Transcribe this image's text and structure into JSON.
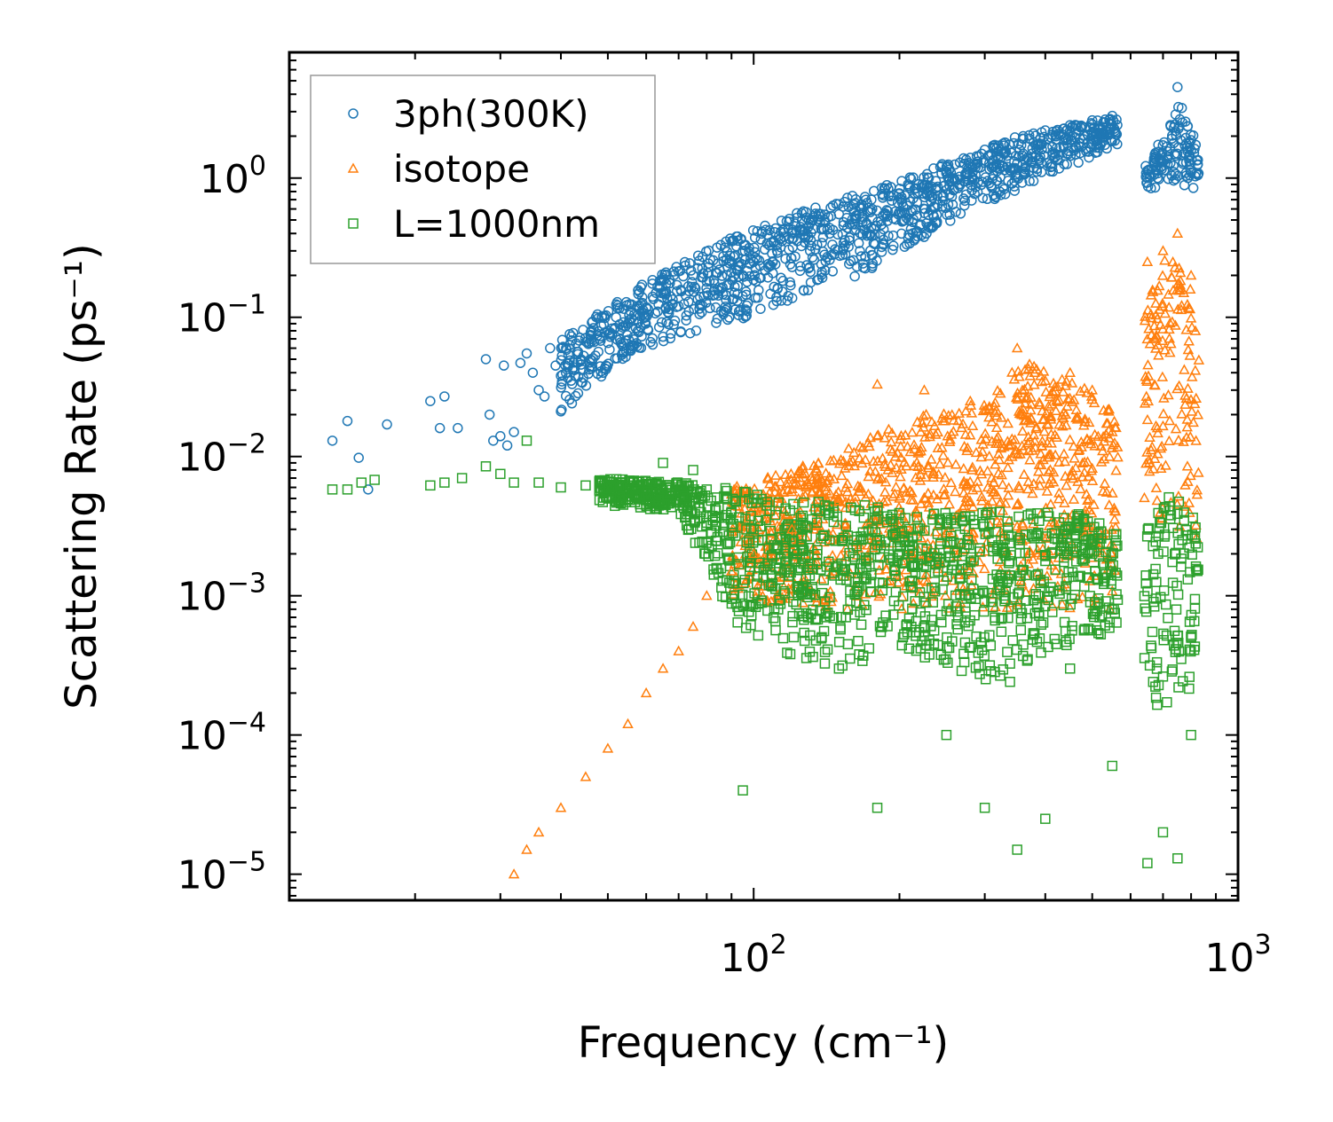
{
  "chart_data": {
    "type": "scatter",
    "title": "",
    "xlabel": "Frequency (cm⁻¹)",
    "ylabel": "Scattering Rate (ps⁻¹)",
    "xscale": "log",
    "yscale": "log",
    "xlim": [
      11,
      1000
    ],
    "ylim": [
      6.5e-06,
      8
    ],
    "x_ticks": [
      {
        "value": 100,
        "base": "10",
        "exp": "2"
      },
      {
        "value": 1000,
        "base": "10",
        "exp": "3"
      }
    ],
    "y_ticks": [
      {
        "value": 1e-05,
        "base": "10",
        "exp": "−5"
      },
      {
        "value": 0.0001,
        "base": "10",
        "exp": "−4"
      },
      {
        "value": 0.001,
        "base": "10",
        "exp": "−3"
      },
      {
        "value": 0.01,
        "base": "10",
        "exp": "−2"
      },
      {
        "value": 0.1,
        "base": "10",
        "exp": "−1"
      },
      {
        "value": 1,
        "base": "10",
        "exp": "0"
      }
    ],
    "legend_position": "top-left",
    "series": [
      {
        "name": "3ph(300K)",
        "marker": "circle",
        "color": "#1f77b4",
        "points": [
          [
            13.5,
            0.013
          ],
          [
            14.5,
            0.018
          ],
          [
            15.3,
            0.0098
          ],
          [
            16,
            0.0058
          ],
          [
            17.5,
            0.017
          ],
          [
            21.5,
            0.025
          ],
          [
            22.5,
            0.016
          ],
          [
            23,
            0.027
          ],
          [
            24.5,
            0.016
          ],
          [
            28,
            0.05
          ],
          [
            28.5,
            0.02
          ],
          [
            29,
            0.013
          ],
          [
            30,
            0.014
          ],
          [
            30.5,
            0.045
          ],
          [
            31,
            0.012
          ],
          [
            32,
            0.015
          ],
          [
            33,
            0.047
          ],
          [
            34,
            0.055
          ],
          [
            35,
            0.04
          ],
          [
            36,
            0.03
          ],
          [
            37,
            0.027
          ],
          [
            38,
            0.06
          ],
          [
            39,
            0.045
          ],
          [
            40,
            0.038
          ],
          [
            41,
            0.06
          ],
          [
            42,
            0.035
          ],
          [
            43,
            0.065
          ],
          [
            44,
            0.05
          ],
          [
            46,
            0.05
          ],
          [
            48,
            0.07
          ],
          [
            50,
            0.08
          ],
          [
            52,
            0.1
          ],
          [
            55,
            0.09
          ],
          [
            58,
            0.12
          ],
          [
            60,
            0.1
          ],
          [
            65,
            0.15
          ],
          [
            70,
            0.12
          ],
          [
            75,
            0.2
          ],
          [
            80,
            0.18
          ],
          [
            85,
            0.22
          ],
          [
            90,
            0.25
          ],
          [
            95,
            0.3
          ],
          [
            100,
            0.25
          ],
          [
            110,
            0.35
          ],
          [
            120,
            0.4
          ],
          [
            130,
            0.45
          ],
          [
            140,
            0.5
          ],
          [
            150,
            0.55
          ],
          [
            160,
            0.6
          ],
          [
            175,
            0.7
          ],
          [
            190,
            0.75
          ],
          [
            210,
            0.85
          ],
          [
            230,
            1.0
          ],
          [
            250,
            1.2
          ],
          [
            280,
            1.4
          ],
          [
            300,
            1.6
          ],
          [
            330,
            1.8
          ],
          [
            360,
            2.0
          ],
          [
            400,
            2.2
          ],
          [
            450,
            2.4
          ],
          [
            500,
            2.6
          ],
          [
            550,
            2.8
          ],
          [
            650,
            1.0
          ],
          [
            700,
            1.3
          ],
          [
            750,
            4.5
          ],
          [
            800,
            1.1
          ]
        ],
        "band": [
          [
            40,
            0.02,
            0.07
          ],
          [
            60,
            0.06,
            0.18
          ],
          [
            80,
            0.08,
            0.3
          ],
          [
            100,
            0.1,
            0.45
          ],
          [
            130,
            0.15,
            0.6
          ],
          [
            170,
            0.2,
            0.8
          ],
          [
            220,
            0.35,
            1.1
          ],
          [
            280,
            0.6,
            1.5
          ],
          [
            350,
            0.8,
            2.0
          ],
          [
            450,
            1.2,
            2.4
          ],
          [
            550,
            1.6,
            2.7
          ],
          [
            560,
            1.6,
            2.7
          ],
          [
            650,
            0.8,
            1.3
          ],
          [
            700,
            0.9,
            2.0
          ],
          [
            760,
            0.9,
            3.5
          ],
          [
            820,
            0.8,
            1.8
          ],
          [
            830,
            0.75,
            1.2
          ]
        ]
      },
      {
        "name": "isotope",
        "marker": "triangle",
        "color": "#ff7f0e",
        "points": [
          [
            32,
            1e-05
          ],
          [
            34,
            1.5e-05
          ],
          [
            36,
            2e-05
          ],
          [
            40,
            3e-05
          ],
          [
            45,
            5e-05
          ],
          [
            50,
            8e-05
          ],
          [
            55,
            0.00012
          ],
          [
            60,
            0.0002
          ],
          [
            65,
            0.0003
          ],
          [
            70,
            0.0004
          ],
          [
            75,
            0.0006
          ],
          [
            80,
            0.001
          ],
          [
            90,
            0.0015
          ],
          [
            100,
            0.002
          ],
          [
            120,
            0.003
          ],
          [
            150,
            0.0048
          ],
          [
            180,
            0.033
          ],
          [
            200,
            0.005
          ],
          [
            225,
            0.03
          ],
          [
            280,
            0.025
          ],
          [
            350,
            0.06
          ],
          [
            380,
            0.04
          ],
          [
            400,
            0.035
          ],
          [
            450,
            0.04
          ],
          [
            500,
            0.03
          ],
          [
            550,
            0.015
          ],
          [
            650,
            0.25
          ],
          [
            700,
            0.3
          ],
          [
            750,
            0.4
          ],
          [
            800,
            0.2
          ]
        ],
        "band": [
          [
            90,
            0.001,
            0.006
          ],
          [
            120,
            0.0008,
            0.008
          ],
          [
            160,
            0.0008,
            0.012
          ],
          [
            220,
            0.0008,
            0.02
          ],
          [
            300,
            0.0008,
            0.025
          ],
          [
            360,
            0.0008,
            0.05
          ],
          [
            420,
            0.0008,
            0.04
          ],
          [
            500,
            0.0008,
            0.03
          ],
          [
            560,
            0.0008,
            0.02
          ],
          [
            650,
            0.005,
            0.15
          ],
          [
            720,
            0.003,
            0.3
          ],
          [
            800,
            0.002,
            0.2
          ],
          [
            830,
            0.002,
            0.05
          ]
        ]
      },
      {
        "name": "L=1000nm",
        "marker": "square",
        "color": "#2ca02c",
        "points": [
          [
            13.5,
            0.0058
          ],
          [
            14.5,
            0.0058
          ],
          [
            15.5,
            0.0065
          ],
          [
            16.5,
            0.0068
          ],
          [
            21.5,
            0.0062
          ],
          [
            23,
            0.0065
          ],
          [
            25,
            0.007
          ],
          [
            28,
            0.0085
          ],
          [
            30,
            0.0075
          ],
          [
            32,
            0.0065
          ],
          [
            34,
            0.013
          ],
          [
            36,
            0.0065
          ],
          [
            40,
            0.006
          ],
          [
            45,
            0.0062
          ],
          [
            50,
            0.006
          ],
          [
            55,
            0.0062
          ],
          [
            60,
            0.006
          ],
          [
            65,
            0.009
          ],
          [
            70,
            0.006
          ],
          [
            75,
            0.008
          ],
          [
            80,
            0.0058
          ],
          [
            90,
            0.004
          ],
          [
            95,
            4e-05
          ],
          [
            100,
            0.003
          ],
          [
            120,
            0.0025
          ],
          [
            150,
            0.0003
          ],
          [
            180,
            3e-05
          ],
          [
            200,
            0.002
          ],
          [
            250,
            0.0001
          ],
          [
            300,
            3e-05
          ],
          [
            350,
            1.5e-05
          ],
          [
            400,
            2.5e-05
          ],
          [
            450,
            0.0003
          ],
          [
            500,
            0.002
          ],
          [
            550,
            6e-05
          ],
          [
            650,
            1.2e-05
          ],
          [
            700,
            2e-05
          ],
          [
            750,
            1.3e-05
          ],
          [
            800,
            0.0001
          ]
        ],
        "band": [
          [
            48,
            0.0045,
            0.007
          ],
          [
            70,
            0.004,
            0.0065
          ],
          [
            90,
            0.0006,
            0.006
          ],
          [
            110,
            0.0004,
            0.005
          ],
          [
            150,
            0.0003,
            0.005
          ],
          [
            200,
            0.0004,
            0.004
          ],
          [
            260,
            0.0003,
            0.004
          ],
          [
            330,
            0.0002,
            0.004
          ],
          [
            400,
            0.0003,
            0.004
          ],
          [
            480,
            0.0005,
            0.004
          ],
          [
            560,
            0.0005,
            0.003
          ],
          [
            650,
            0.0002,
            0.004
          ],
          [
            720,
            0.0001,
            0.006
          ],
          [
            800,
            0.0002,
            0.004
          ],
          [
            830,
            0.0005,
            0.003
          ]
        ]
      }
    ]
  }
}
